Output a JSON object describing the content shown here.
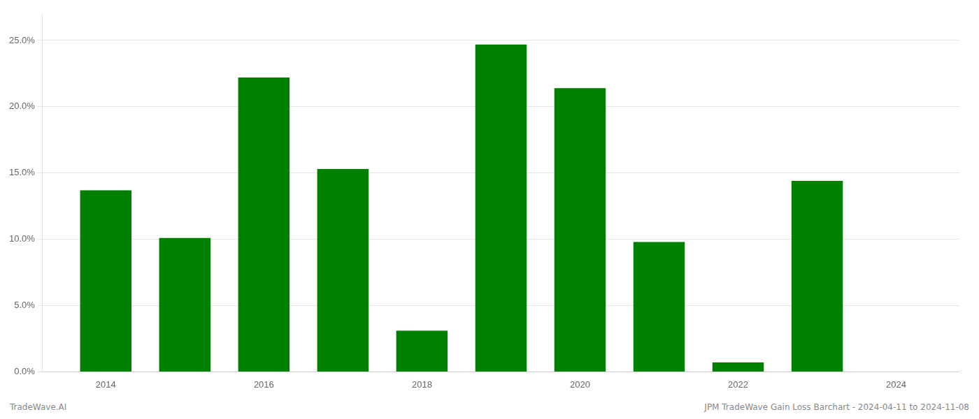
{
  "chart_data": {
    "type": "bar",
    "x": [
      2014,
      2015,
      2016,
      2017,
      2018,
      2019,
      2020,
      2021,
      2022,
      2023
    ],
    "values": [
      0.137,
      0.101,
      0.222,
      0.153,
      0.031,
      0.247,
      0.214,
      0.098,
      0.007,
      0.144
    ],
    "color": "#008000",
    "xlim": [
      2013.2,
      2024.8
    ],
    "xticks": [
      2014,
      2016,
      2018,
      2020,
      2022,
      2024
    ],
    "ylim": [
      0,
      0.27
    ],
    "yticks": [
      {
        "value": 0.0,
        "label": "0.0%"
      },
      {
        "value": 0.05,
        "label": "5.0%"
      },
      {
        "value": 0.1,
        "label": "10.0%"
      },
      {
        "value": 0.15,
        "label": "15.0%"
      },
      {
        "value": 0.2,
        "label": "20.0%"
      },
      {
        "value": 0.25,
        "label": "25.0%"
      }
    ],
    "grid": "y",
    "annotations": [
      "TradeWave.AI",
      "JPM TradeWave Gain Loss Barchart - 2024-04-11 to 2024-11-08"
    ]
  }
}
